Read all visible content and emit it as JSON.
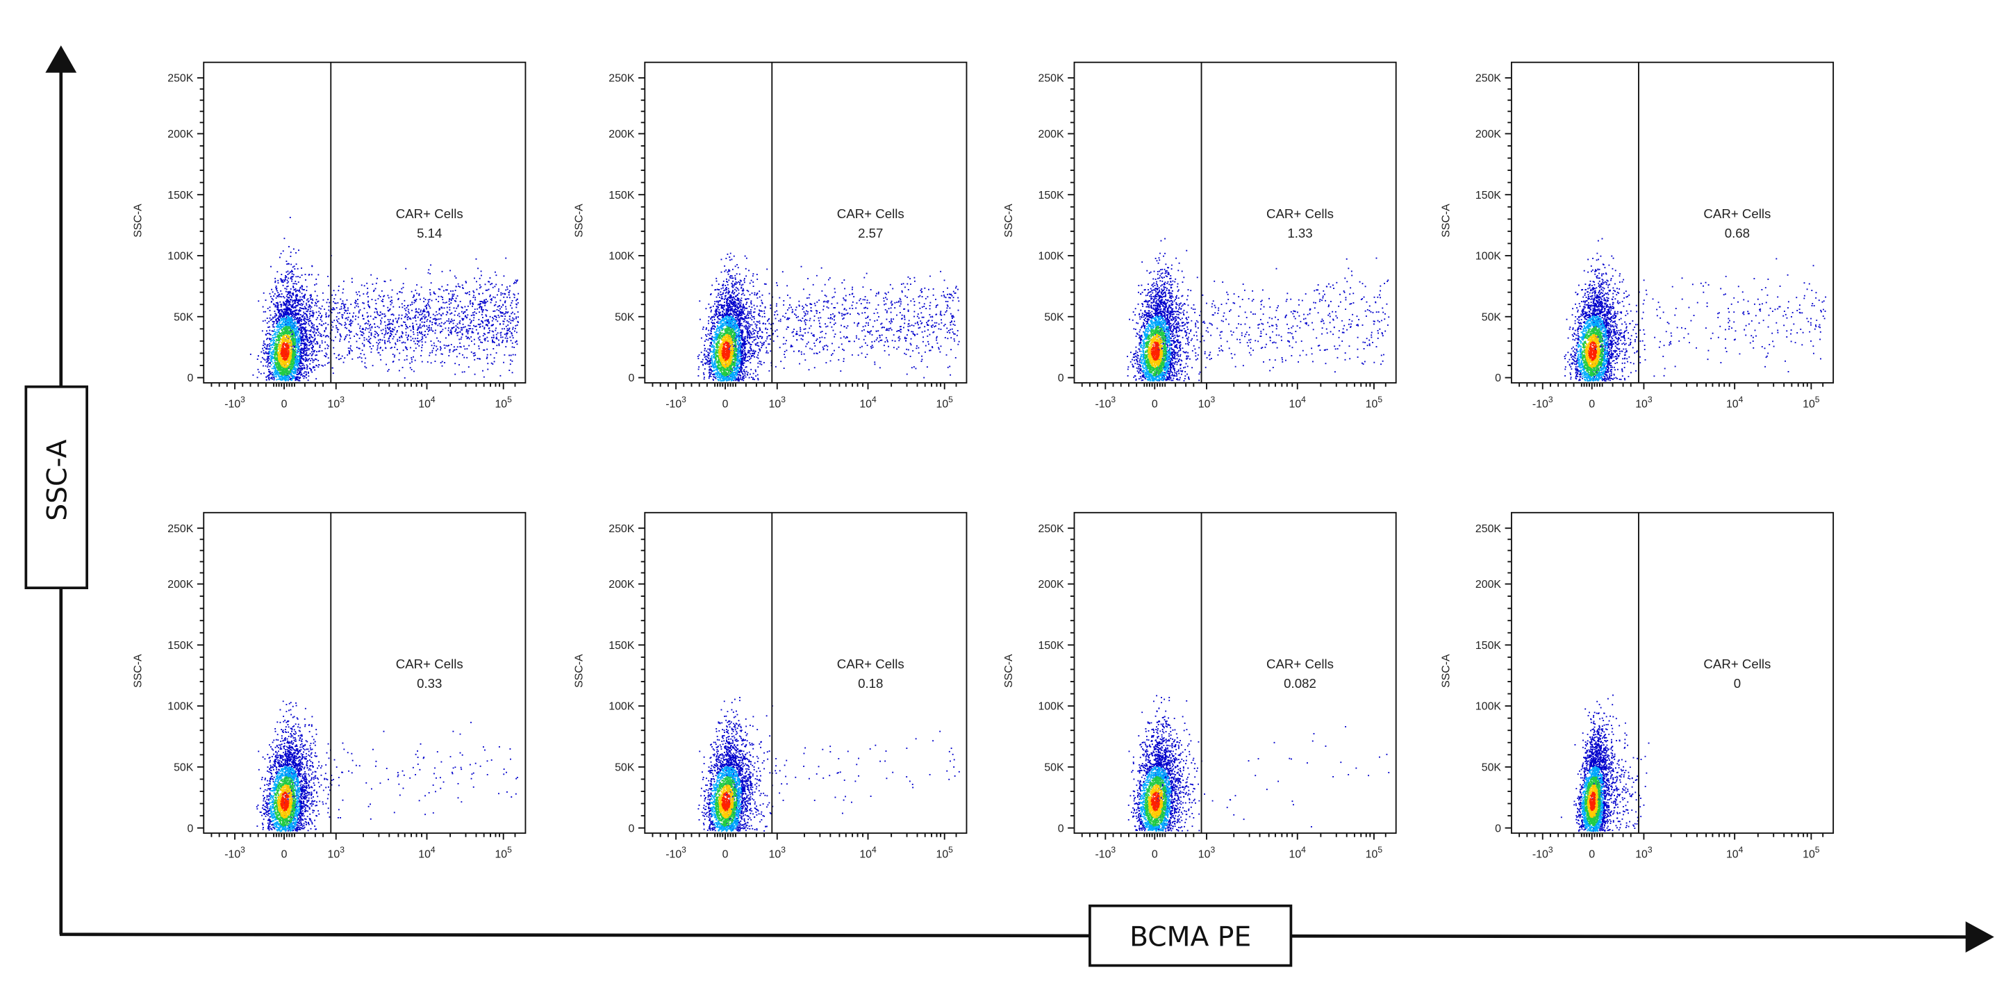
{
  "axes": {
    "y_label": "SSC-A",
    "x_label": "BCMA PE"
  },
  "y_ticks": [
    "0",
    "50K",
    "100K",
    "150K",
    "200K",
    "250K"
  ],
  "x_ticks": [
    {
      "base": "-10",
      "exp": "3"
    },
    {
      "base": "0"
    },
    {
      "base": "10",
      "exp": "3"
    },
    {
      "base": "10",
      "exp": "4"
    },
    {
      "base": "10",
      "exp": "5"
    }
  ],
  "panels": [
    {
      "y_label": "SSC-A",
      "gate_label": "CAR+ Cells",
      "gate_value": "5.14"
    },
    {
      "y_label": "SSC-A",
      "gate_label": "CAR+ Cells",
      "gate_value": "2.57"
    },
    {
      "y_label": "SSC-A",
      "gate_label": "CAR+ Cells",
      "gate_value": "1.33"
    },
    {
      "y_label": "SSC-A",
      "gate_label": "CAR+ Cells",
      "gate_value": "0.68"
    },
    {
      "y_label": "SSC-A",
      "gate_label": "CAR+ Cells",
      "gate_value": "0.33"
    },
    {
      "y_label": "SSC-A",
      "gate_label": "CAR+ Cells",
      "gate_value": "0.18"
    },
    {
      "y_label": "SSC-A",
      "gate_label": "CAR+ Cells",
      "gate_value": "0.082"
    },
    {
      "y_label": "SSC-A",
      "gate_label": "CAR+ Cells",
      "gate_value": "0"
    }
  ]
}
